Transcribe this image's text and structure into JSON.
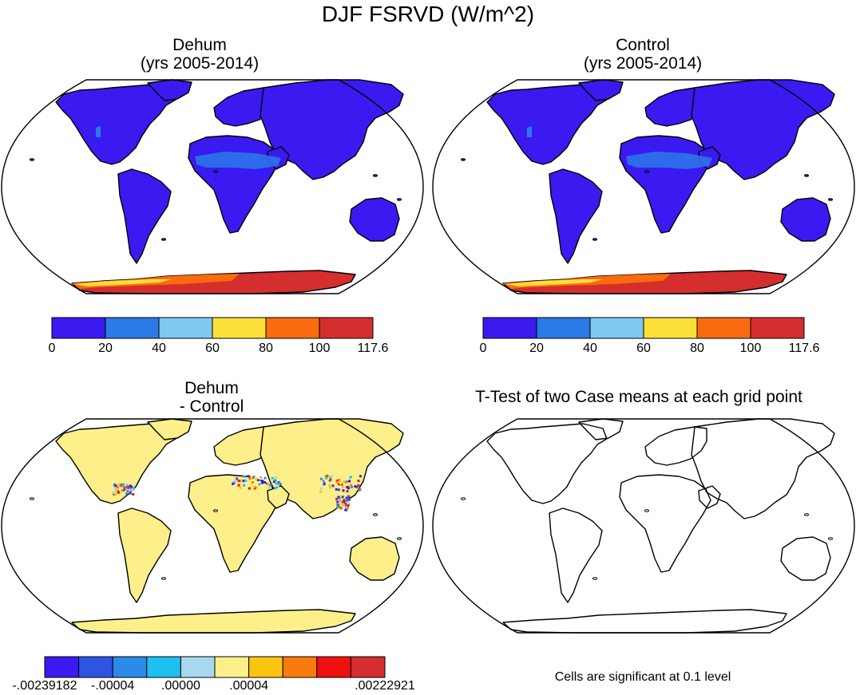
{
  "figure": {
    "title": "DJF FSRVD (W/m^2)"
  },
  "panels": [
    {
      "id": "dehum",
      "title_line1": "Dehum",
      "title_line2": "(yrs 2005-2014)"
    },
    {
      "id": "control",
      "title_line1": "Control",
      "title_line2": "(yrs 2005-2014)"
    },
    {
      "id": "difference",
      "title_line1": "Dehum",
      "title_line2": "- Control"
    },
    {
      "id": "ttest",
      "title_line1": "T-Test of two Case means at each grid point",
      "note": "Cells are significant at 0.1 level"
    }
  ],
  "colorbar_main": {
    "colors": [
      "#3a1af0",
      "#2a7ae8",
      "#7fc8ef",
      "#fde03a",
      "#fb6a0e",
      "#d42e2e"
    ],
    "labels": [
      "0",
      "20",
      "40",
      "60",
      "80",
      "100",
      "117.6"
    ]
  },
  "colorbar_diff": {
    "colors": [
      "#3a1af0",
      "#2e54e4",
      "#2a8ae8",
      "#1ec0f0",
      "#a8d8f0",
      "#fdf08a",
      "#fbc40e",
      "#fb7a0e",
      "#f01010",
      "#d42e2e"
    ],
    "labels": [
      {
        "text": ".00239182",
        "prefix": "-",
        "at": 0
      },
      {
        "text": ".00004",
        "prefix": "-",
        "at": 2
      },
      {
        "text": ".00000",
        "prefix": "",
        "at": 4
      },
      {
        "text": ".00004",
        "prefix": "",
        "at": 6
      },
      {
        "text": ".00222921",
        "prefix": "",
        "at": 10
      }
    ]
  },
  "map_colors": {
    "land_main": "#3a1af0",
    "desert": "#2a7ae8",
    "antarctica_hi": "#d42e2e",
    "antarctica_mid": "#fb6a0e",
    "antarctica_low": "#fde03a",
    "land_diff": "#fdf08a",
    "coast": "#000000"
  }
}
